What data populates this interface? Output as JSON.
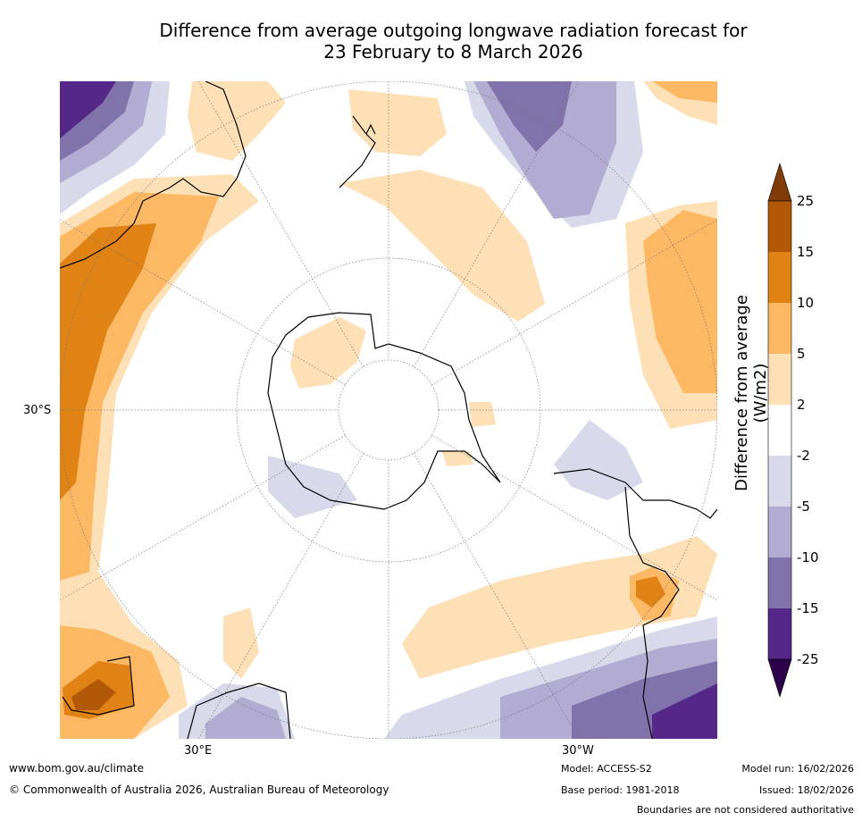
{
  "title_line1": "Difference from average outgoing longwave radiation forecast for",
  "title_line2": "23 February to 8 March 2026",
  "map_labels": {
    "lat_30s": "30°S",
    "lon_30e": "30°E",
    "lon_30w": "30°W"
  },
  "colorbar": {
    "label": "Difference from average (W/m2)",
    "ticks": [
      "25",
      "15",
      "10",
      "5",
      "2",
      "-2",
      "-5",
      "-10",
      "-15",
      "-25"
    ],
    "colors": [
      "#7f3b08",
      "#b35806",
      "#e08214",
      "#fdb863",
      "#fee0b6",
      "#ffffff",
      "#d8daeb",
      "#b2abd2",
      "#8073ac",
      "#542788",
      "#2d004b"
    ]
  },
  "footer": {
    "website": "www.bom.gov.au/climate",
    "copyright": "© Commonwealth of Australia 2026, Australian Bureau of Meteorology",
    "model": "Model: ACCESS-S2",
    "base_period": "Base period: 1981-2018",
    "model_run": "Model run: 16/02/2026",
    "issued": "Issued: 18/02/2026",
    "disclaimer": "Boundaries are not considered authoritative"
  }
}
